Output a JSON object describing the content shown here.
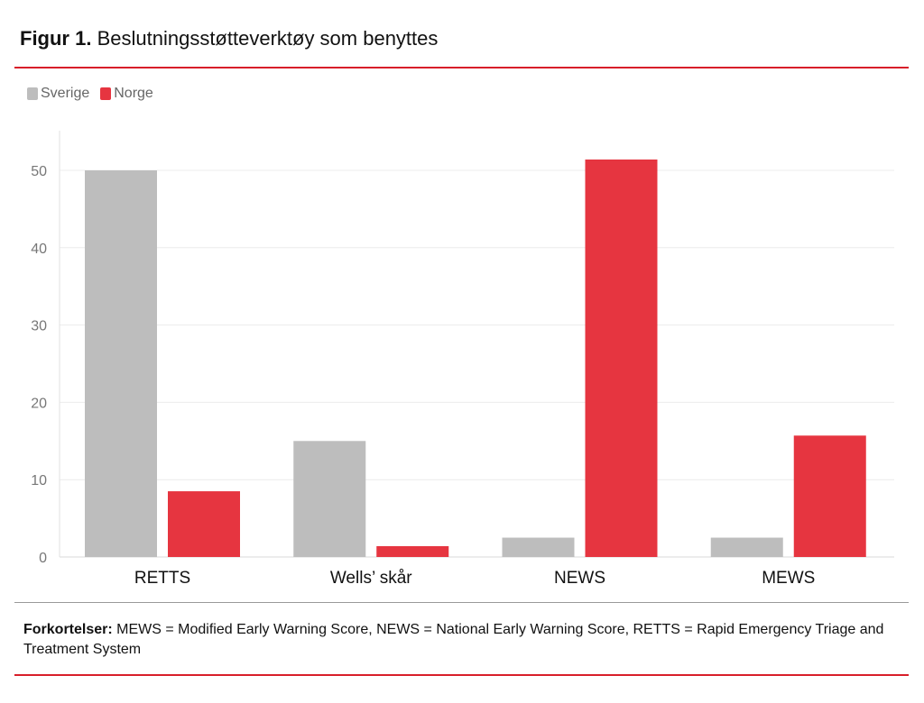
{
  "header": {
    "figure_label": "Figur 1.",
    "title": "Beslutningsstøtteverktøy som benyttes"
  },
  "colors": {
    "accent_red": "#d81e2a",
    "series_sverige": "#bdbdbd",
    "series_norge": "#e63540"
  },
  "chart_data": {
    "type": "bar",
    "categories": [
      "RETTS",
      "Wells’ skår",
      "NEWS",
      "MEWS"
    ],
    "series": [
      {
        "name": "Sverige",
        "color": "#bdbdbd",
        "values": [
          50,
          15,
          2.5,
          2.5
        ]
      },
      {
        "name": "Norge",
        "color": "#e63540",
        "values": [
          8.5,
          1.4,
          51.4,
          15.7
        ]
      }
    ],
    "yticks": [
      0,
      10,
      20,
      30,
      40,
      50
    ],
    "ylim": [
      0,
      55
    ],
    "grid": true,
    "legend_position": "top-left"
  },
  "footnote": {
    "label": "Forkortelser:",
    "text": "MEWS = Modified Early Warning Score, NEWS = National Early Warning Score, RETTS = Rapid Emergency Triage and Treatment System"
  }
}
